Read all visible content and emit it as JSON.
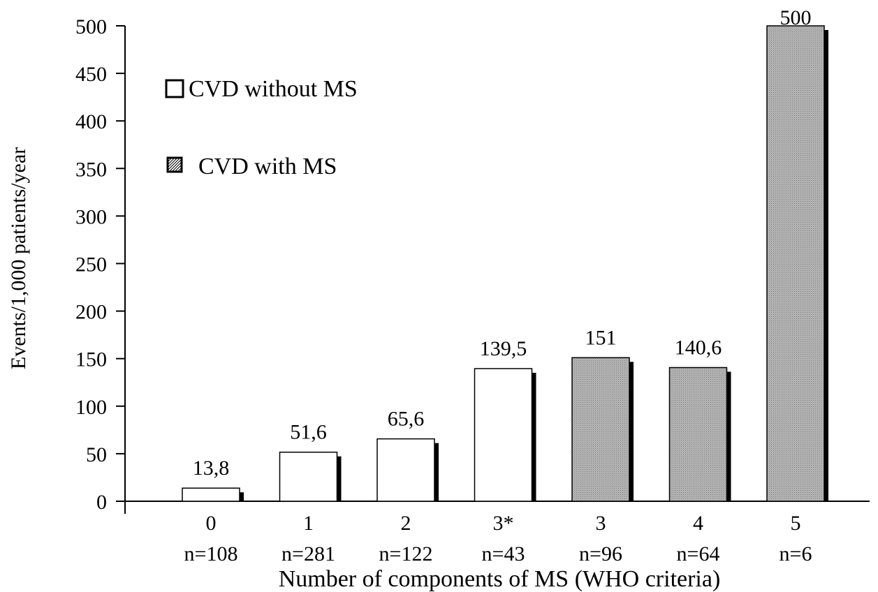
{
  "chart_data": {
    "type": "bar",
    "title": "",
    "xlabel": "Number of components of MS (WHO criteria)",
    "ylabel": "Events/1,000 patients/year",
    "ylim": [
      0,
      500
    ],
    "yticks": [
      0,
      50,
      100,
      150,
      200,
      250,
      300,
      350,
      400,
      450,
      500
    ],
    "categories": [
      "0",
      "1",
      "2",
      "3*",
      "3",
      "4",
      "5"
    ],
    "n_labels": [
      "n=108",
      "n=281",
      "n=122",
      "n=43",
      "n=96",
      "n=64",
      "n=6"
    ],
    "values": [
      13.8,
      51.6,
      65.6,
      139.5,
      151,
      140.6,
      500
    ],
    "value_labels": [
      "13,8",
      "51,6",
      "65,6",
      "139,5",
      "151",
      "140,6",
      "500"
    ],
    "bar_group": [
      "without",
      "without",
      "without",
      "without",
      "with",
      "with",
      "with"
    ],
    "legend": [
      {
        "key": "without",
        "label": "CVD without MS",
        "fill": "#ffffff"
      },
      {
        "key": "with",
        "label": "CVD with MS",
        "fill": "#b3b3b3"
      }
    ],
    "legend_placement": "top-left",
    "grid": false
  }
}
